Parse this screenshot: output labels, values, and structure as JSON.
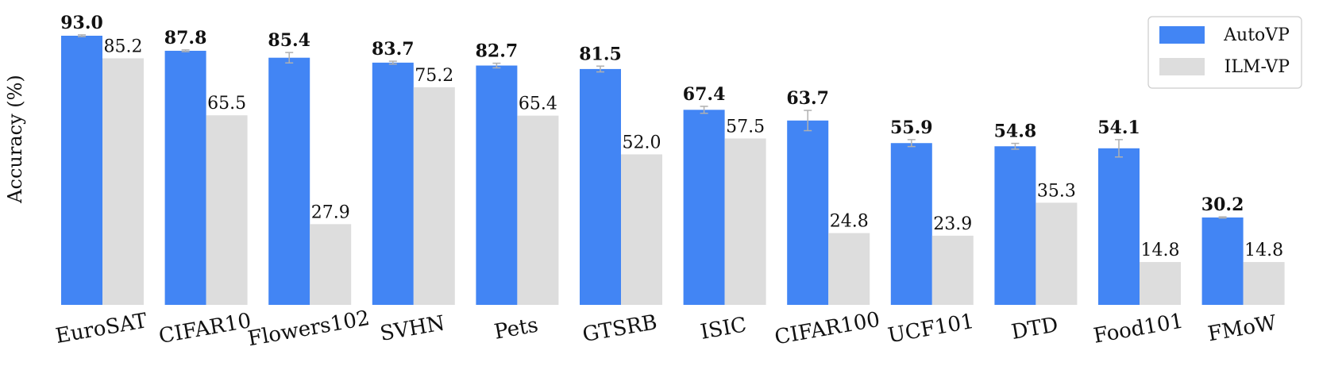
{
  "chart_data": {
    "type": "bar",
    "ylabel": "Accuracy (%)",
    "ylim": [
      0,
      100
    ],
    "categories": [
      "EuroSAT",
      "CIFAR10",
      "Flowers102",
      "SVHN",
      "Pets",
      "GTSRB",
      "ISIC",
      "CIFAR100",
      "UCF101",
      "DTD",
      "Food101",
      "FMoW"
    ],
    "series": [
      {
        "name": "AutoVP",
        "color": "#4285F4",
        "values": [
          93.0,
          87.8,
          85.4,
          83.7,
          82.7,
          81.5,
          67.4,
          63.7,
          55.9,
          54.8,
          54.1,
          30.2
        ],
        "labels": [
          "93.0",
          "87.8",
          "85.4",
          "83.7",
          "82.7",
          "81.5",
          "67.4",
          "63.7",
          "55.9",
          "54.8",
          "54.1",
          "30.2"
        ],
        "errors": [
          0.3,
          0.3,
          1.8,
          0.5,
          0.8,
          1.0,
          1.2,
          3.5,
          1.2,
          1.0,
          3.0,
          0.2
        ]
      },
      {
        "name": "ILM-VP",
        "color": "#DDDDDD",
        "values": [
          85.2,
          65.5,
          27.9,
          75.2,
          65.4,
          52.0,
          57.5,
          24.8,
          23.9,
          35.3,
          14.8,
          14.8
        ],
        "labels": [
          "85.2",
          "65.5",
          "27.9",
          "75.2",
          "65.4",
          "52.0",
          "57.5",
          "24.8",
          "23.9",
          "35.3",
          "14.8",
          "14.8"
        ]
      }
    ],
    "legend_position": "top-right",
    "grid": false
  }
}
